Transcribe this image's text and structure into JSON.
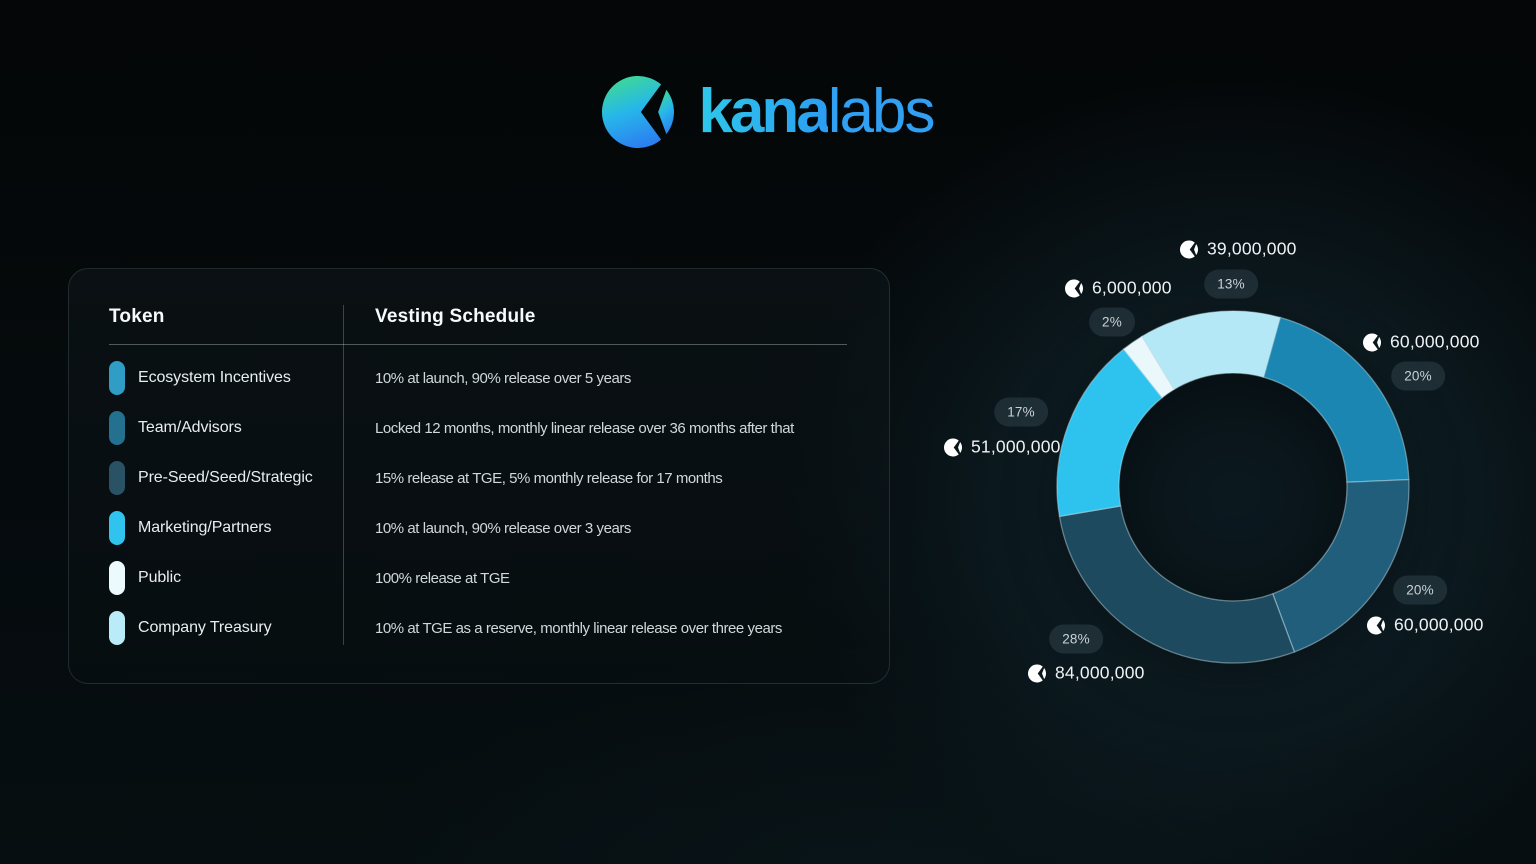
{
  "logo": {
    "brand_bold": "kana",
    "brand_light": "labs"
  },
  "table": {
    "col1_header": "Token",
    "col2_header": "Vesting Schedule",
    "rows": [
      {
        "token": "Ecosystem Incentives",
        "schedule": "10% at launch, 90% release over 5 years",
        "color": "#2f9dc6"
      },
      {
        "token": "Team/Advisors",
        "schedule": "Locked 12 months, monthly linear release over 36 months after that",
        "color": "#24718f"
      },
      {
        "token": "Pre-Seed/Seed/Strategic",
        "schedule": "15% release at TGE, 5% monthly release for 17 months",
        "color": "#2a5265"
      },
      {
        "token": "Marketing/Partners",
        "schedule": "10% at launch, 90% release over 3 years",
        "color": "#2fc3ee"
      },
      {
        "token": "Public",
        "schedule": "100% release at TGE",
        "color": "#ecfafd"
      },
      {
        "token": "Company Treasury",
        "schedule": "10% at TGE as a reserve, monthly linear release over three years",
        "color": "#b9ebf8"
      }
    ]
  },
  "chart_data": {
    "type": "pie",
    "donut": true,
    "start_angle_deg": -31.2,
    "legend_position": "left-table",
    "segments": [
      {
        "label": "Company Treasury",
        "pct": 13,
        "pct_label": "13%",
        "amount": "39,000,000",
        "color": "#b5e8f6"
      },
      {
        "label": "Ecosystem Incentives",
        "pct": 20,
        "pct_label": "20%",
        "amount": "60,000,000",
        "color": "#1c86b2"
      },
      {
        "label": "Team/Advisors",
        "pct": 20,
        "pct_label": "20%",
        "amount": "60,000,000",
        "color": "#205e7c"
      },
      {
        "label": "Pre-Seed/Seed/Strategic",
        "pct": 28,
        "pct_label": "28%",
        "amount": "84,000,000",
        "color": "#1d4a5e"
      },
      {
        "label": "Marketing/Partners",
        "pct": 17,
        "pct_label": "17%",
        "amount": "51,000,000",
        "color": "#2dc3ee"
      },
      {
        "label": "Public",
        "pct": 2,
        "pct_label": "2%",
        "amount": "6,000,000",
        "color": "#eaf8fc"
      }
    ]
  }
}
